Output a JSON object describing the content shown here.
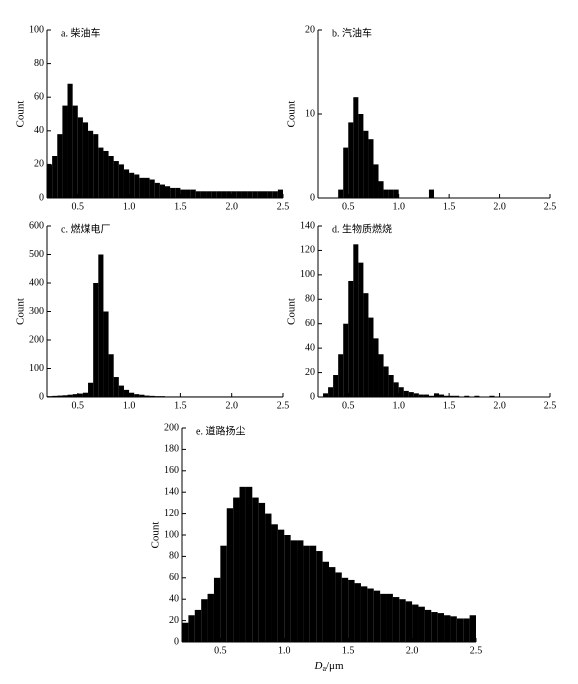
{
  "chart_data": [
    {
      "type": "histogram",
      "title": "a. 柴油车",
      "ylabel": "Count",
      "color": "#000000",
      "bins": [
        0.2,
        0.25,
        0.3,
        0.35,
        0.4,
        0.45,
        0.5,
        0.55,
        0.6,
        0.65,
        0.7,
        0.75,
        0.8,
        0.85,
        0.9,
        0.95,
        1.0,
        1.05,
        1.1,
        1.15,
        1.2,
        1.25,
        1.3,
        1.35,
        1.4,
        1.45,
        1.5,
        1.55,
        1.6,
        1.65,
        1.7,
        1.75,
        1.8,
        1.85,
        1.9,
        1.95,
        2.0,
        2.05,
        2.1,
        2.15,
        2.2,
        2.25,
        2.3,
        2.35,
        2.4,
        2.45,
        2.5
      ],
      "values": [
        20,
        25,
        38,
        55,
        68,
        55,
        48,
        45,
        40,
        38,
        30,
        28,
        25,
        22,
        20,
        17,
        15,
        14,
        12,
        12,
        11,
        9,
        8,
        7,
        6,
        6,
        5,
        5,
        5,
        4,
        4,
        4,
        4,
        4,
        4,
        4,
        4,
        4,
        4,
        4,
        4,
        4,
        4,
        4,
        4,
        5
      ],
      "xlim": [
        0.2,
        2.5
      ],
      "xticks": [
        0.5,
        {
          "value": 1,
          "label": "1.0"
        },
        1.5,
        {
          "value": 2,
          "label": "2.0"
        },
        2.5
      ],
      "ylim": [
        0,
        100
      ],
      "yticks": [
        0,
        20,
        40,
        60,
        80,
        100
      ]
    },
    {
      "type": "histogram",
      "title": "b. 汽油车",
      "ylabel": "Count",
      "color": "#000000",
      "bins": [
        0.2,
        0.25,
        0.3,
        0.35,
        0.4,
        0.45,
        0.5,
        0.55,
        0.6,
        0.65,
        0.7,
        0.75,
        0.8,
        0.85,
        0.9,
        0.95,
        1.0,
        1.05,
        1.1,
        1.15,
        1.2,
        1.25,
        1.3,
        1.35,
        1.4,
        1.45,
        1.5,
        1.55,
        1.6,
        1.65,
        1.7,
        1.75,
        1.8,
        1.85,
        1.9,
        1.95,
        2.0,
        2.05,
        2.1,
        2.15,
        2.2,
        2.25,
        2.3,
        2.35,
        2.4,
        2.45,
        2.5
      ],
      "values": [
        0,
        0,
        0,
        0,
        1,
        6,
        9,
        12,
        10,
        8,
        7,
        4,
        2,
        1,
        1,
        1,
        0,
        0,
        0,
        0,
        0,
        0,
        1,
        0,
        0,
        0,
        0,
        0,
        0,
        0,
        0,
        0,
        0,
        0,
        0,
        0,
        0,
        0,
        0,
        0,
        0,
        0,
        0,
        0,
        0,
        0
      ],
      "xlim": [
        0.2,
        2.5
      ],
      "xticks": [
        0.5,
        {
          "value": 1,
          "label": "1.0"
        },
        1.5,
        {
          "value": 2,
          "label": "2.0"
        },
        2.5
      ],
      "ylim": [
        0,
        20
      ],
      "yticks": [
        0,
        10,
        20
      ]
    },
    {
      "type": "histogram",
      "title": "c. 燃煤电厂",
      "ylabel": "Count",
      "color": "#000000",
      "bins": [
        0.2,
        0.25,
        0.3,
        0.35,
        0.4,
        0.45,
        0.5,
        0.55,
        0.6,
        0.65,
        0.7,
        0.75,
        0.8,
        0.85,
        0.9,
        0.95,
        1.0,
        1.05,
        1.1,
        1.15,
        1.2,
        1.25,
        1.3,
        1.35,
        1.4,
        1.45,
        1.5,
        1.55,
        1.6,
        1.65,
        1.7,
        1.75,
        1.8,
        1.85,
        1.9,
        1.95,
        2.0,
        2.05,
        2.1,
        2.15,
        2.2,
        2.25,
        2.3,
        2.35,
        2.4,
        2.45,
        2.5
      ],
      "values": [
        3,
        4,
        5,
        6,
        8,
        10,
        12,
        15,
        50,
        400,
        500,
        300,
        150,
        70,
        40,
        25,
        15,
        10,
        8,
        5,
        4,
        3,
        3,
        2,
        2,
        2,
        2,
        2,
        2,
        2,
        2,
        2,
        2,
        2,
        2,
        2,
        2,
        2,
        2,
        2,
        2,
        2,
        2,
        2,
        2,
        2
      ],
      "xlim": [
        0.2,
        2.5
      ],
      "xticks": [
        0.5,
        {
          "value": 1,
          "label": "1.0"
        },
        1.5,
        {
          "value": 2,
          "label": "2.0"
        },
        2.5
      ],
      "ylim": [
        0,
        600
      ],
      "yticks": [
        0,
        100,
        200,
        300,
        400,
        500,
        600
      ]
    },
    {
      "type": "histogram",
      "title": "d. 生物质燃烧",
      "ylabel": "Count",
      "color": "#000000",
      "bins": [
        0.2,
        0.25,
        0.3,
        0.35,
        0.4,
        0.45,
        0.5,
        0.55,
        0.6,
        0.65,
        0.7,
        0.75,
        0.8,
        0.85,
        0.9,
        0.95,
        1.0,
        1.05,
        1.1,
        1.15,
        1.2,
        1.25,
        1.3,
        1.35,
        1.4,
        1.45,
        1.5,
        1.55,
        1.6,
        1.65,
        1.7,
        1.75,
        1.8,
        1.85,
        1.9,
        1.95,
        2.0,
        2.05,
        2.1,
        2.15,
        2.2,
        2.25,
        2.3,
        2.35,
        2.4,
        2.45,
        2.5
      ],
      "values": [
        0,
        3,
        8,
        18,
        35,
        60,
        95,
        125,
        110,
        85,
        65,
        48,
        35,
        25,
        18,
        12,
        8,
        5,
        4,
        3,
        2,
        2,
        1,
        3,
        2,
        1,
        1,
        1,
        0,
        1,
        0,
        1,
        0,
        0,
        1,
        0,
        0,
        0,
        0,
        0,
        0,
        0,
        0,
        0,
        0,
        0
      ],
      "xlim": [
        0.2,
        2.5
      ],
      "xticks": [
        0.5,
        {
          "value": 1,
          "label": "1.0"
        },
        1.5,
        {
          "value": 2,
          "label": "2.0"
        },
        2.5
      ],
      "ylim": [
        0,
        140
      ],
      "yticks": [
        0,
        20,
        40,
        60,
        80,
        100,
        120,
        140
      ]
    },
    {
      "type": "histogram",
      "title": "e. 道路扬尘",
      "ylabel": "Count",
      "xlabel_main": "D",
      "xlabel_sub": "a",
      "xlabel_unit": "/μm",
      "color": "#000000",
      "bins": [
        0.2,
        0.25,
        0.3,
        0.35,
        0.4,
        0.45,
        0.5,
        0.55,
        0.6,
        0.65,
        0.7,
        0.75,
        0.8,
        0.85,
        0.9,
        0.95,
        1.0,
        1.05,
        1.1,
        1.15,
        1.2,
        1.25,
        1.3,
        1.35,
        1.4,
        1.45,
        1.5,
        1.55,
        1.6,
        1.65,
        1.7,
        1.75,
        1.8,
        1.85,
        1.9,
        1.95,
        2.0,
        2.05,
        2.1,
        2.15,
        2.2,
        2.25,
        2.3,
        2.35,
        2.4,
        2.45,
        2.5
      ],
      "values": [
        18,
        25,
        30,
        40,
        45,
        60,
        90,
        125,
        135,
        145,
        145,
        135,
        130,
        120,
        110,
        105,
        100,
        95,
        95,
        90,
        90,
        85,
        75,
        70,
        65,
        60,
        58,
        55,
        52,
        50,
        48,
        45,
        45,
        42,
        40,
        38,
        35,
        33,
        30,
        28,
        27,
        25,
        24,
        22,
        22,
        25
      ],
      "xlim": [
        0.2,
        2.5
      ],
      "xticks": [
        0.5,
        {
          "value": 1,
          "label": "1.0"
        },
        1.5,
        {
          "value": 2,
          "label": "2.0"
        },
        2.5
      ],
      "ylim": [
        0,
        200
      ],
      "yticks": [
        0,
        20,
        40,
        60,
        80,
        100,
        120,
        140,
        160,
        180,
        200
      ]
    }
  ]
}
